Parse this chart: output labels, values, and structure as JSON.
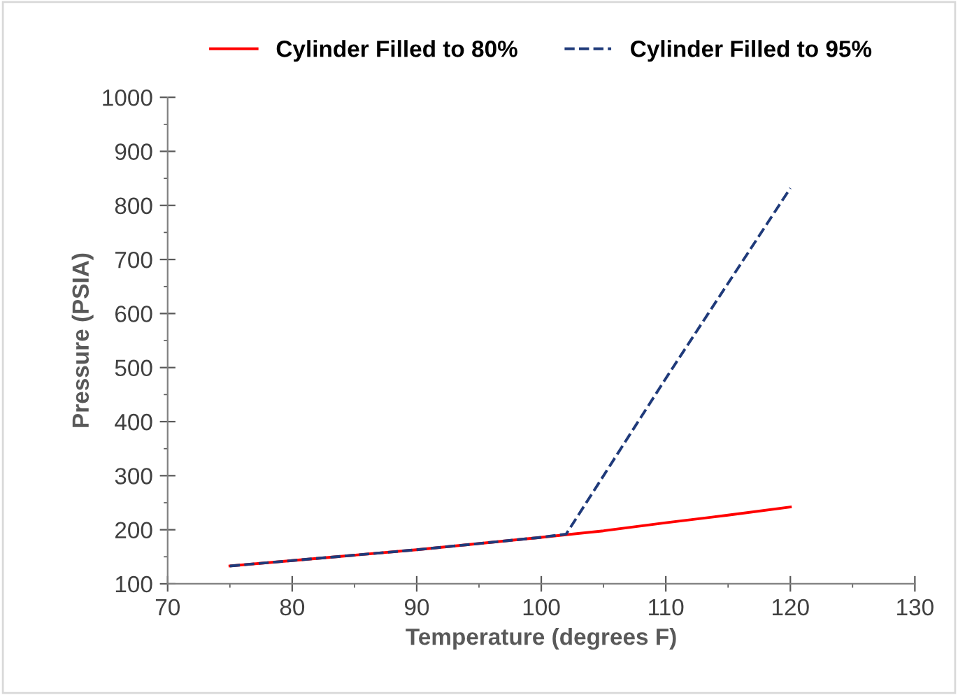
{
  "chart_data": {
    "type": "line",
    "xlabel": "Temperature (degrees F)",
    "ylabel": "Pressure (PSIA)",
    "series": [
      {
        "name": "Cylinder Filled to 80%",
        "color": "#ff0000",
        "line_style": "solid",
        "x": [
          75,
          80,
          90,
          100,
          105,
          110,
          115,
          120
        ],
        "values": [
          133,
          143,
          163,
          186,
          198,
          213,
          227,
          242
        ]
      },
      {
        "name": "Cylinder Filled to 95%",
        "color": "#1f3a7a",
        "line_style": "dashed",
        "x": [
          75,
          80,
          90,
          100,
          102,
          110,
          120
        ],
        "values": [
          133,
          143,
          163,
          186,
          192,
          480,
          832
        ]
      }
    ],
    "xlim": [
      70,
      130
    ],
    "xticks": [
      70,
      80,
      90,
      100,
      110,
      120,
      130
    ],
    "ylim": [
      100,
      1000
    ],
    "yticks": [
      100,
      200,
      300,
      400,
      500,
      600,
      700,
      800,
      900,
      1000
    ],
    "grid": false,
    "legend": "top",
    "marker": "none"
  }
}
